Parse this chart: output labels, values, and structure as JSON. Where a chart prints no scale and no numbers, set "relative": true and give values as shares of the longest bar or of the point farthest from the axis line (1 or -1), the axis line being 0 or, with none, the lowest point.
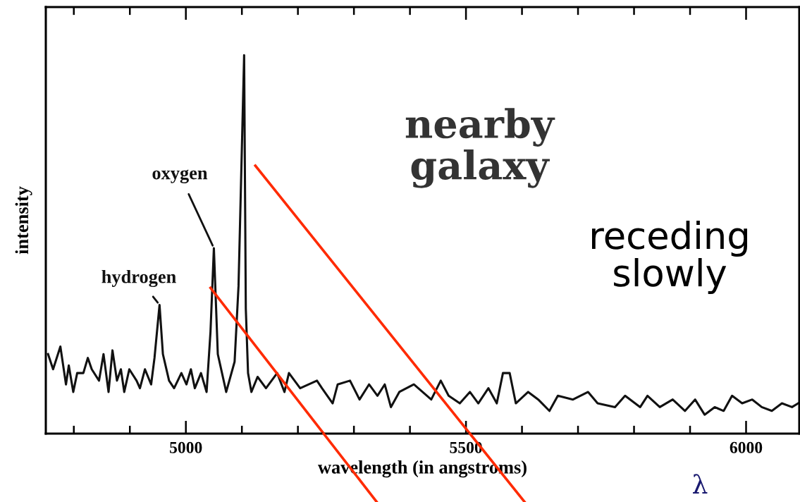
{
  "chart_data": {
    "type": "line",
    "relative": true,
    "xlabel": "wavelength (in angstroms)",
    "ylabel": "intensity",
    "xlim": [
      4750,
      6095
    ],
    "xticks": [
      {
        "value": 4800,
        "label": null
      },
      {
        "value": 4900,
        "label": null
      },
      5000,
      {
        "value": 5100,
        "label": null
      },
      {
        "value": 5200,
        "label": null
      },
      {
        "value": 5300,
        "label": null
      },
      {
        "value": 5400,
        "label": null
      },
      5500,
      {
        "value": 5600,
        "label": null
      },
      {
        "value": 5700,
        "label": null
      },
      {
        "value": 5800,
        "label": null
      },
      {
        "value": 5900,
        "label": null
      },
      6000
    ],
    "grid": false,
    "marker": "none",
    "line_style": "solid",
    "annotations": [
      {
        "text": "hydrogen",
        "x": 4953,
        "y": 0.34
      },
      {
        "text": "oxygen",
        "x": 5050,
        "y": 0.49
      },
      "nearby galaxy",
      "receding slowly",
      "λ"
    ],
    "series": [
      {
        "color": "#111111",
        "x": [
          4754,
          4763,
          4776,
          4786,
          4791,
          4799,
          4806,
          4817,
          4825,
          4832,
          4845,
          4853,
          4862,
          4869,
          4877,
          4884,
          4890,
          4899,
          4912,
          4918,
          4927,
          4938,
          4944,
          4953,
          4959,
          4970,
          4979,
          4992,
          5001,
          5009,
          5016,
          5027,
          5037,
          5044,
          5050,
          5057,
          5072,
          5087,
          5094,
          5104,
          5107,
          5111,
          5117,
          5128,
          5143,
          5163,
          5176,
          5184,
          5204,
          5234,
          5243,
          5262,
          5271,
          5293,
          5310,
          5327,
          5342,
          5355,
          5366,
          5381,
          5407,
          5438,
          5455,
          5469,
          5489,
          5507,
          5522,
          5540,
          5555,
          5566,
          5578,
          5589,
          5611,
          5629,
          5649,
          5664,
          5691,
          5718,
          5735,
          5766,
          5784,
          5811,
          5824,
          5846,
          5869,
          5891,
          5909,
          5926,
          5944,
          5960,
          5975,
          5993,
          6011,
          6028,
          6046,
          6064,
          6082,
          6093
        ],
        "values": [
          0.21,
          0.17,
          0.23,
          0.13,
          0.18,
          0.11,
          0.16,
          0.16,
          0.2,
          0.17,
          0.14,
          0.21,
          0.11,
          0.22,
          0.14,
          0.17,
          0.11,
          0.17,
          0.14,
          0.12,
          0.17,
          0.13,
          0.2,
          0.34,
          0.21,
          0.14,
          0.12,
          0.16,
          0.13,
          0.17,
          0.12,
          0.16,
          0.11,
          0.27,
          0.49,
          0.21,
          0.11,
          0.19,
          0.39,
          1.0,
          0.33,
          0.16,
          0.11,
          0.15,
          0.12,
          0.16,
          0.11,
          0.16,
          0.12,
          0.14,
          0.12,
          0.08,
          0.13,
          0.14,
          0.09,
          0.13,
          0.1,
          0.13,
          0.07,
          0.11,
          0.13,
          0.09,
          0.14,
          0.1,
          0.08,
          0.11,
          0.08,
          0.12,
          0.08,
          0.16,
          0.16,
          0.08,
          0.11,
          0.09,
          0.06,
          0.1,
          0.09,
          0.11,
          0.08,
          0.07,
          0.1,
          0.07,
          0.1,
          0.07,
          0.09,
          0.06,
          0.09,
          0.05,
          0.07,
          0.06,
          0.1,
          0.08,
          0.09,
          0.07,
          0.06,
          0.08,
          0.07,
          0.08
        ]
      },
      {
        "type": "line",
        "color": "#ff2a00",
        "x": [
          5124,
          5507
        ],
        "values": [
          0.708,
          0
        ]
      },
      {
        "type": "line",
        "color": "#ff2a00",
        "x": [
          5044,
          5246
        ],
        "values": [
          0.385,
          0
        ]
      }
    ]
  }
}
